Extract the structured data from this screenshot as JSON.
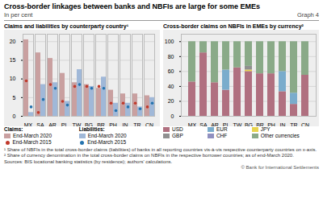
{
  "title": "Cross-border linkages between banks and NBFIs are large for some EMEs",
  "subtitle": "In per cent",
  "graph_label": "Graph 4",
  "chart_data": [
    {
      "type": "bar",
      "title": "Claims and liabilities by counterparty country¹",
      "categories": [
        "MX",
        "SA",
        "AR",
        "PL",
        "TW",
        "BG",
        "BR",
        "PH",
        "IN",
        "TR",
        "CN"
      ],
      "series": [
        {
          "name": "End-March 2020",
          "group": "Claims:",
          "type": "bar",
          "color": "#c9a0a0",
          "values": [
            20.5,
            17.0,
            15.5,
            11.5,
            9.0,
            8.5,
            7.5,
            7.0,
            6.0,
            6.0,
            5.5
          ]
        },
        {
          "name": "End-March 2020",
          "group": "Liabilities:",
          "type": "bar",
          "color": "#a0b8d8",
          "values": [
            1.0,
            8.5,
            9.0,
            4.0,
            12.5,
            8.0,
            10.5,
            3.5,
            3.5,
            2.5,
            5.0
          ]
        },
        {
          "name": "End-March 2015",
          "group": "Claims:",
          "type": "scatter",
          "marker": "circle",
          "color": "#c0392b",
          "values": [
            9.5,
            1.0,
            8.5,
            4.0,
            8.0,
            8.0,
            8.0,
            3.5,
            3.5,
            3.5,
            2.5
          ]
        },
        {
          "name": "End-March 2015",
          "group": "Liabilities:",
          "type": "scatter",
          "marker": "circle",
          "color": "#2473ae",
          "values": [
            2.5,
            4.5,
            7.5,
            3.0,
            8.5,
            7.5,
            7.5,
            1.5,
            2.5,
            2.0,
            3.5
          ]
        }
      ],
      "ylim": [
        0,
        22
      ],
      "yticks": [
        0,
        5,
        10,
        15,
        20
      ],
      "grid": true
    },
    {
      "type": "bar",
      "stacked": true,
      "title": "Cross-border claims on NBFIs in EMEs by currency²",
      "categories": [
        "MX",
        "SA",
        "AR",
        "PL",
        "TW",
        "BG",
        "BR",
        "PH",
        "IN",
        "TR",
        "CN"
      ],
      "series": [
        {
          "name": "USD",
          "color": "#b07080",
          "values": [
            46,
            85,
            45,
            35,
            65,
            60,
            57,
            57,
            33,
            16,
            55
          ]
        },
        {
          "name": "EUR",
          "color": "#7aaccc",
          "values": [
            0,
            0,
            0,
            27,
            0,
            0,
            0,
            0,
            27,
            15,
            0
          ]
        },
        {
          "name": "JPY",
          "color": "#e8d44d",
          "values": [
            0,
            0,
            0,
            0,
            0,
            2,
            0,
            0,
            0,
            0,
            0
          ]
        },
        {
          "name": "GBP",
          "color": "#909090",
          "values": [
            0,
            0,
            0,
            0,
            0,
            5,
            0,
            0,
            0,
            0,
            0
          ]
        },
        {
          "name": "CHF",
          "color": "#9090c0",
          "values": [
            0,
            0,
            0,
            0,
            0,
            0,
            0,
            0,
            0,
            0,
            0
          ]
        },
        {
          "name": "Other currencies",
          "color": "#8aaa88",
          "values": [
            54,
            15,
            55,
            38,
            35,
            33,
            43,
            43,
            40,
            69,
            45
          ]
        }
      ],
      "ylim": [
        0,
        110
      ],
      "yticks": [
        0,
        20,
        40,
        60,
        80,
        100
      ],
      "grid": true
    }
  ],
  "footnotes": [
    "¹ Share of NBFIs in the total cross-border claims (liabilities) of banks in all reporting countries vis-à-vis respective counterparty countries on x-axis.",
    "² Share of currency denomination in the total cross-border claims on NBFIs in the respective borrower countries; as of end-March 2020."
  ],
  "source": "Sources: BIS locational banking statistics (by residence); authors' calculations.",
  "copyright": "© Bank for International Settlements"
}
